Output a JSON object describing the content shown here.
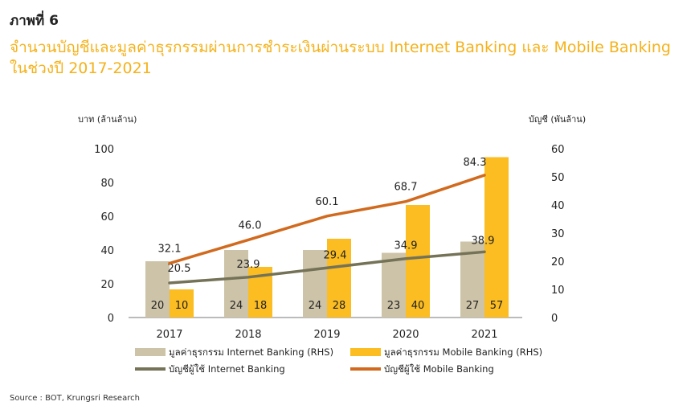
{
  "figure_label": "ภาพที่ 6",
  "title": "จำนวนบัญชีและมูลค่าธุรกรรมผ่านการชำระเงินผ่านระบบ Internet Banking และ Mobile Banking ในช่วงปี 2017-2021",
  "source": "Source : BOT, Krungsri Research",
  "chart_data": {
    "type": "bar",
    "categories": [
      "2017",
      "2018",
      "2019",
      "2020",
      "2021"
    ],
    "left_axis": {
      "label": "บาท (ล้านล้าน)",
      "ticks": [
        "0",
        "20",
        "40",
        "60",
        "80",
        "100"
      ],
      "range": [
        0,
        100
      ]
    },
    "right_axis": {
      "label": "บัญชี (พันล้าน)",
      "ticks": [
        "0",
        "10",
        "20",
        "30",
        "40",
        "50",
        "60"
      ],
      "range": [
        0,
        60
      ]
    },
    "bar_series": [
      {
        "name": "มูลค่าธุรกรรม Internet Banking (RHS)",
        "color": "#cdc3a8",
        "values": [
          20,
          24,
          24,
          23,
          27
        ],
        "labels": [
          "20",
          "24",
          "24",
          "23",
          "27"
        ]
      },
      {
        "name": "มูลค่าธุรกรรม Mobile Banking (RHS)",
        "color": "#fbbd22",
        "values": [
          10,
          18,
          28,
          40,
          57
        ],
        "labels": [
          "10",
          "18",
          "28",
          "40",
          "57"
        ]
      }
    ],
    "line_series": [
      {
        "name": "บัญชีผู้ใช้ Internet Banking",
        "color": "#747257",
        "values": [
          20.5,
          23.9,
          29.4,
          34.9,
          38.9
        ],
        "labels": [
          "20.5",
          "23.9",
          "29.4",
          "34.9",
          "38.9"
        ]
      },
      {
        "name": "บัญชีผู้ใช้ Mobile Banking",
        "color": "#d16a1e",
        "values": [
          32.1,
          46.0,
          60.1,
          68.7,
          84.3
        ],
        "labels": [
          "32.1",
          "46.0",
          "60.1",
          "68.7",
          "84.3"
        ]
      }
    ],
    "grid": false,
    "legend_position": "bottom"
  }
}
